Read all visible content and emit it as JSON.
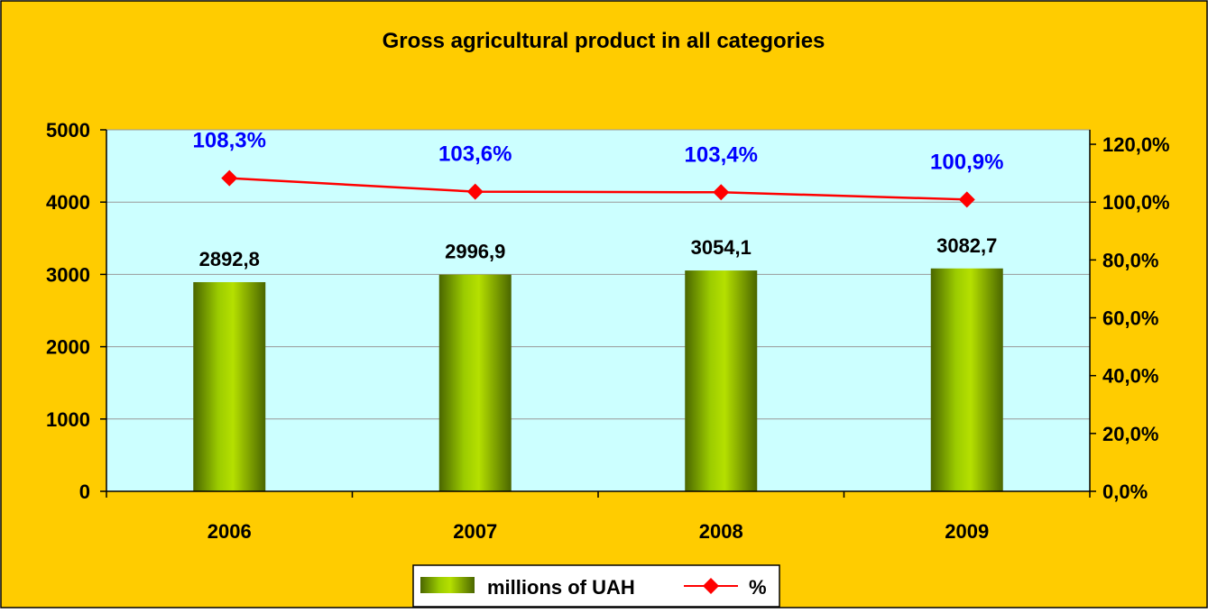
{
  "chart_data": {
    "type": "bar",
    "title": "Gross agricultural product in all categories",
    "categories": [
      "2006",
      "2007",
      "2008",
      "2009"
    ],
    "series": [
      {
        "name": "millions of UAH",
        "type": "bar",
        "axis": "left",
        "values": [
          2892.8,
          2996.9,
          3054.1,
          3082.7
        ],
        "labels": [
          "2892,8",
          "2996,9",
          "3054,1",
          "3082,7"
        ]
      },
      {
        "name": "%",
        "type": "line",
        "axis": "right",
        "values": [
          108.3,
          103.6,
          103.4,
          100.9
        ],
        "labels": [
          "108,3%",
          "103,6%",
          "103,4%",
          "100,9%"
        ]
      }
    ],
    "y_left": {
      "ylim": [
        0,
        5000
      ],
      "ticks": [
        0,
        1000,
        2000,
        3000,
        4000,
        5000
      ],
      "tick_labels": [
        "0",
        "1000",
        "2000",
        "3000",
        "4000",
        "5000"
      ]
    },
    "y_right": {
      "ylim": [
        0,
        125
      ],
      "ticks": [
        0,
        20,
        40,
        60,
        80,
        100,
        120
      ],
      "tick_labels": [
        "0,0%",
        "20,0%",
        "40,0%",
        "60,0%",
        "80,0%",
        "100,0%",
        "120,0%"
      ]
    },
    "grid": true,
    "legend_position": "bottom",
    "colors": {
      "background": "#ffcc00",
      "plot_area": "#ccffff",
      "bar": "#8fbf00",
      "line": "#ff0000",
      "percent_label": "#0000ff",
      "gridline": "#999999"
    }
  }
}
